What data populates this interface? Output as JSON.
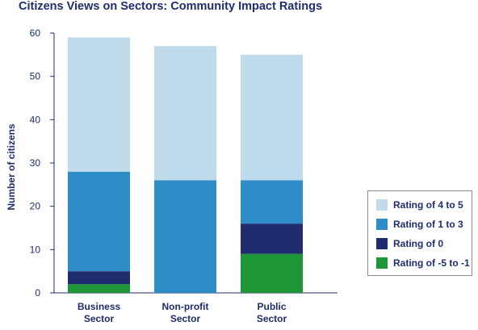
{
  "chart_data": {
    "type": "bar",
    "stacked": true,
    "title": "Citizens Views on Sectors: Community Impact Ratings",
    "xlabel": "",
    "ylabel": "Number of citizens",
    "ylim": [
      0,
      60
    ],
    "yticks": [
      0,
      10,
      20,
      30,
      40,
      50,
      60
    ],
    "categories": [
      [
        "Business",
        "Sector"
      ],
      [
        "Non-profit",
        "Sector"
      ],
      [
        "Public",
        "Sector"
      ]
    ],
    "grid": false,
    "legend_position": "right",
    "series": [
      {
        "name": "Rating of -5 to -1",
        "color": "#1e9638",
        "values": [
          2,
          0,
          9
        ]
      },
      {
        "name": "Rating of 0",
        "color": "#1f2d6e",
        "values": [
          3,
          0,
          7
        ]
      },
      {
        "name": "Rating of 1 to 3",
        "color": "#2e8cc6",
        "values": [
          23,
          26,
          10
        ]
      },
      {
        "name": "Rating of 4 to 5",
        "color": "#c0dcec",
        "values": [
          31,
          31,
          29
        ]
      }
    ],
    "legend_order": [
      "Rating of 4 to 5",
      "Rating of 1 to 3",
      "Rating of 0",
      "Rating of -5 to -1"
    ]
  }
}
